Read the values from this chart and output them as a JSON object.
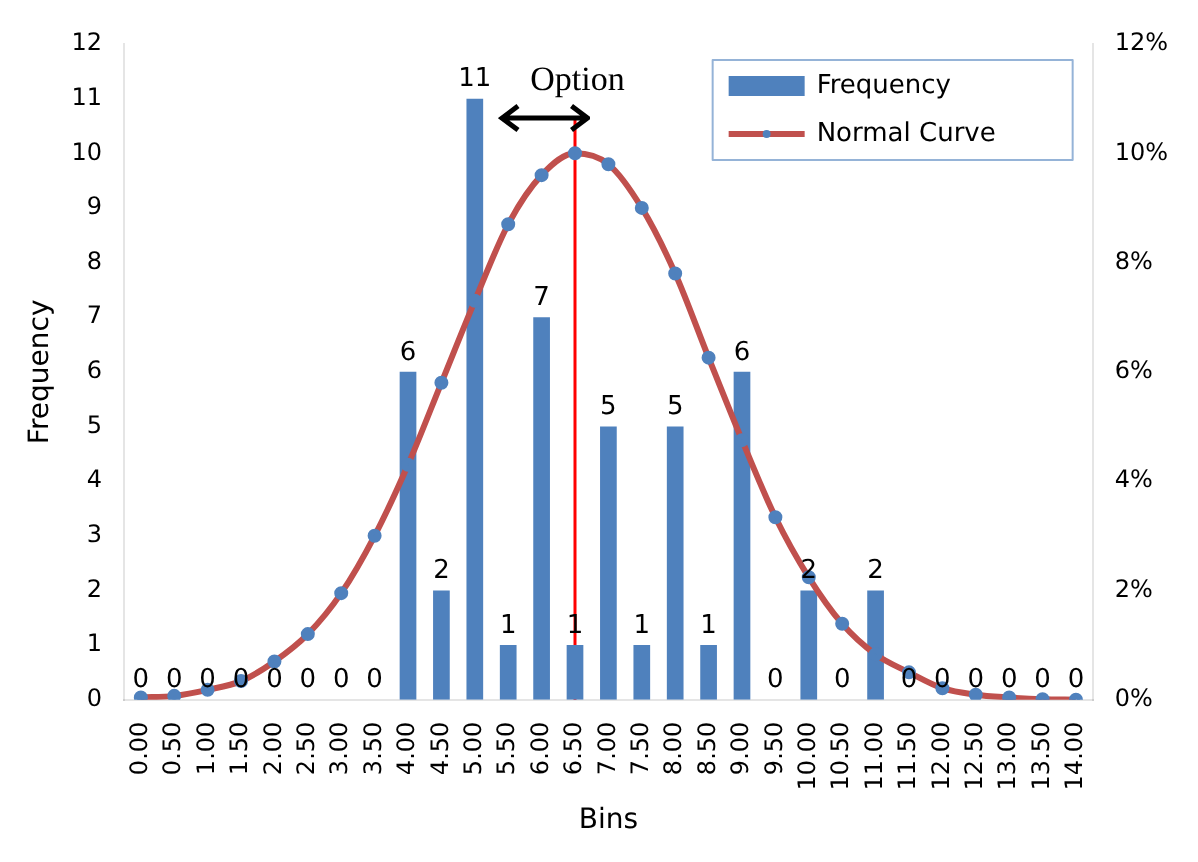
{
  "chart_data": {
    "type": "bar",
    "xlabel": "Bins",
    "ylabel": "Frequency",
    "categories": [
      "0.00",
      "0.50",
      "1.00",
      "1.50",
      "2.00",
      "2.50",
      "3.00",
      "3.50",
      "4.00",
      "4.50",
      "5.00",
      "5.50",
      "6.00",
      "6.50",
      "7.00",
      "7.50",
      "8.00",
      "8.50",
      "9.00",
      "9.50",
      "10.00",
      "10.50",
      "11.00",
      "11.50",
      "12.00",
      "12.50",
      "13.00",
      "13.50",
      "14.00"
    ],
    "series": [
      {
        "name": "Frequency",
        "color": "#4f81bd",
        "values": [
          0,
          0,
          0,
          0,
          0,
          0,
          0,
          0,
          6,
          2,
          11,
          1,
          7,
          1,
          5,
          1,
          5,
          1,
          6,
          0,
          2,
          0,
          2,
          0,
          0,
          0,
          0,
          0,
          0
        ],
        "value_labels": [
          "0",
          "0",
          "0",
          "0",
          "0",
          "0",
          "0",
          "0",
          "6",
          "2",
          "11",
          "1",
          "7",
          "1",
          "5",
          "1",
          "5",
          "1",
          "6",
          "0",
          "2",
          "0",
          "2",
          "0",
          "0",
          "0",
          "0",
          "0",
          "0"
        ]
      },
      {
        "name": "Normal Curve",
        "type": "line",
        "axis": "y2",
        "color": "#c0504d",
        "values": [
          0.04,
          0.07,
          0.18,
          0.34,
          0.7,
          1.2,
          1.95,
          3.0,
          4.3,
          5.8,
          7.3,
          8.7,
          9.6,
          10.0,
          9.8,
          9.0,
          7.8,
          6.26,
          4.75,
          3.34,
          2.24,
          1.39,
          0.83,
          0.5,
          0.21,
          0.09,
          0.04,
          0.01,
          0.0
        ]
      }
    ],
    "ylim": [
      0,
      12
    ],
    "yticks": [
      0,
      1,
      2,
      3,
      4,
      5,
      6,
      7,
      8,
      9,
      10,
      11,
      12
    ],
    "y2lim": [
      0,
      12
    ],
    "y2ticks": [
      {
        "value": 0,
        "label": "0%"
      },
      {
        "value": 2,
        "label": "2%"
      },
      {
        "value": 4,
        "label": "4%"
      },
      {
        "value": 6,
        "label": "6%"
      },
      {
        "value": 8,
        "label": "8%"
      },
      {
        "value": 10,
        "label": "10%"
      },
      {
        "value": 12,
        "label": "12%"
      }
    ],
    "ref_lines": [
      {
        "axis": "x",
        "value": "6.50",
        "color": "#ff0000"
      }
    ],
    "annotations": [
      "Option"
    ],
    "grid": false,
    "legend": "top right",
    "marker": "circle",
    "line_style": "solid"
  }
}
